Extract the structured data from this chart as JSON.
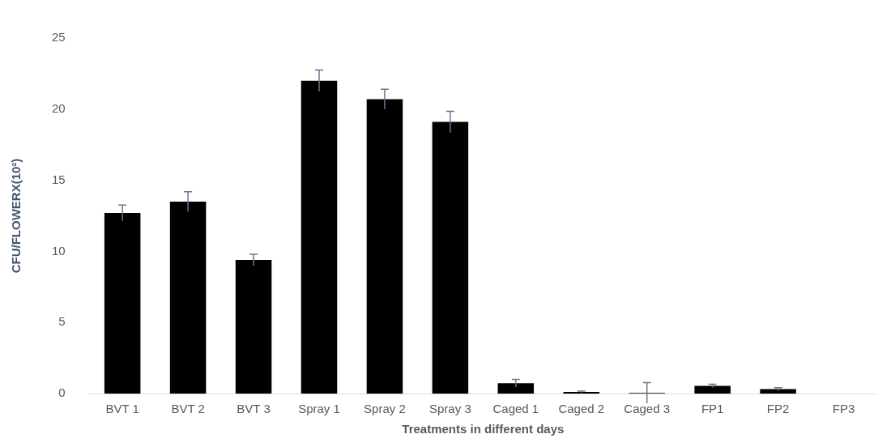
{
  "chart_data": {
    "type": "bar",
    "xlabel": "Treatments in different days",
    "ylabel": "CFU/FLOWERX(10²)",
    "categories": [
      "BVT 1",
      "BVT 2",
      "BVT 3",
      "Spray 1",
      "Spray 2",
      "Spray 3",
      "Caged 1",
      "Caged 2",
      "Caged 3",
      "FP1",
      "FP2",
      "FP3"
    ],
    "values": [
      12.7,
      13.5,
      9.4,
      22.0,
      20.7,
      19.1,
      0.73,
      0.12,
      0.04,
      0.54,
      0.31,
      0
    ],
    "errors": [
      0.55,
      0.7,
      0.4,
      0.75,
      0.7,
      0.75,
      0.27,
      0.05,
      0.73,
      0.11,
      0.11,
      null
    ],
    "color": "#000000",
    "ylim": [
      0,
      25
    ],
    "yticks": [
      0,
      5,
      10,
      15,
      20,
      25
    ],
    "grid": false,
    "legend": false
  }
}
